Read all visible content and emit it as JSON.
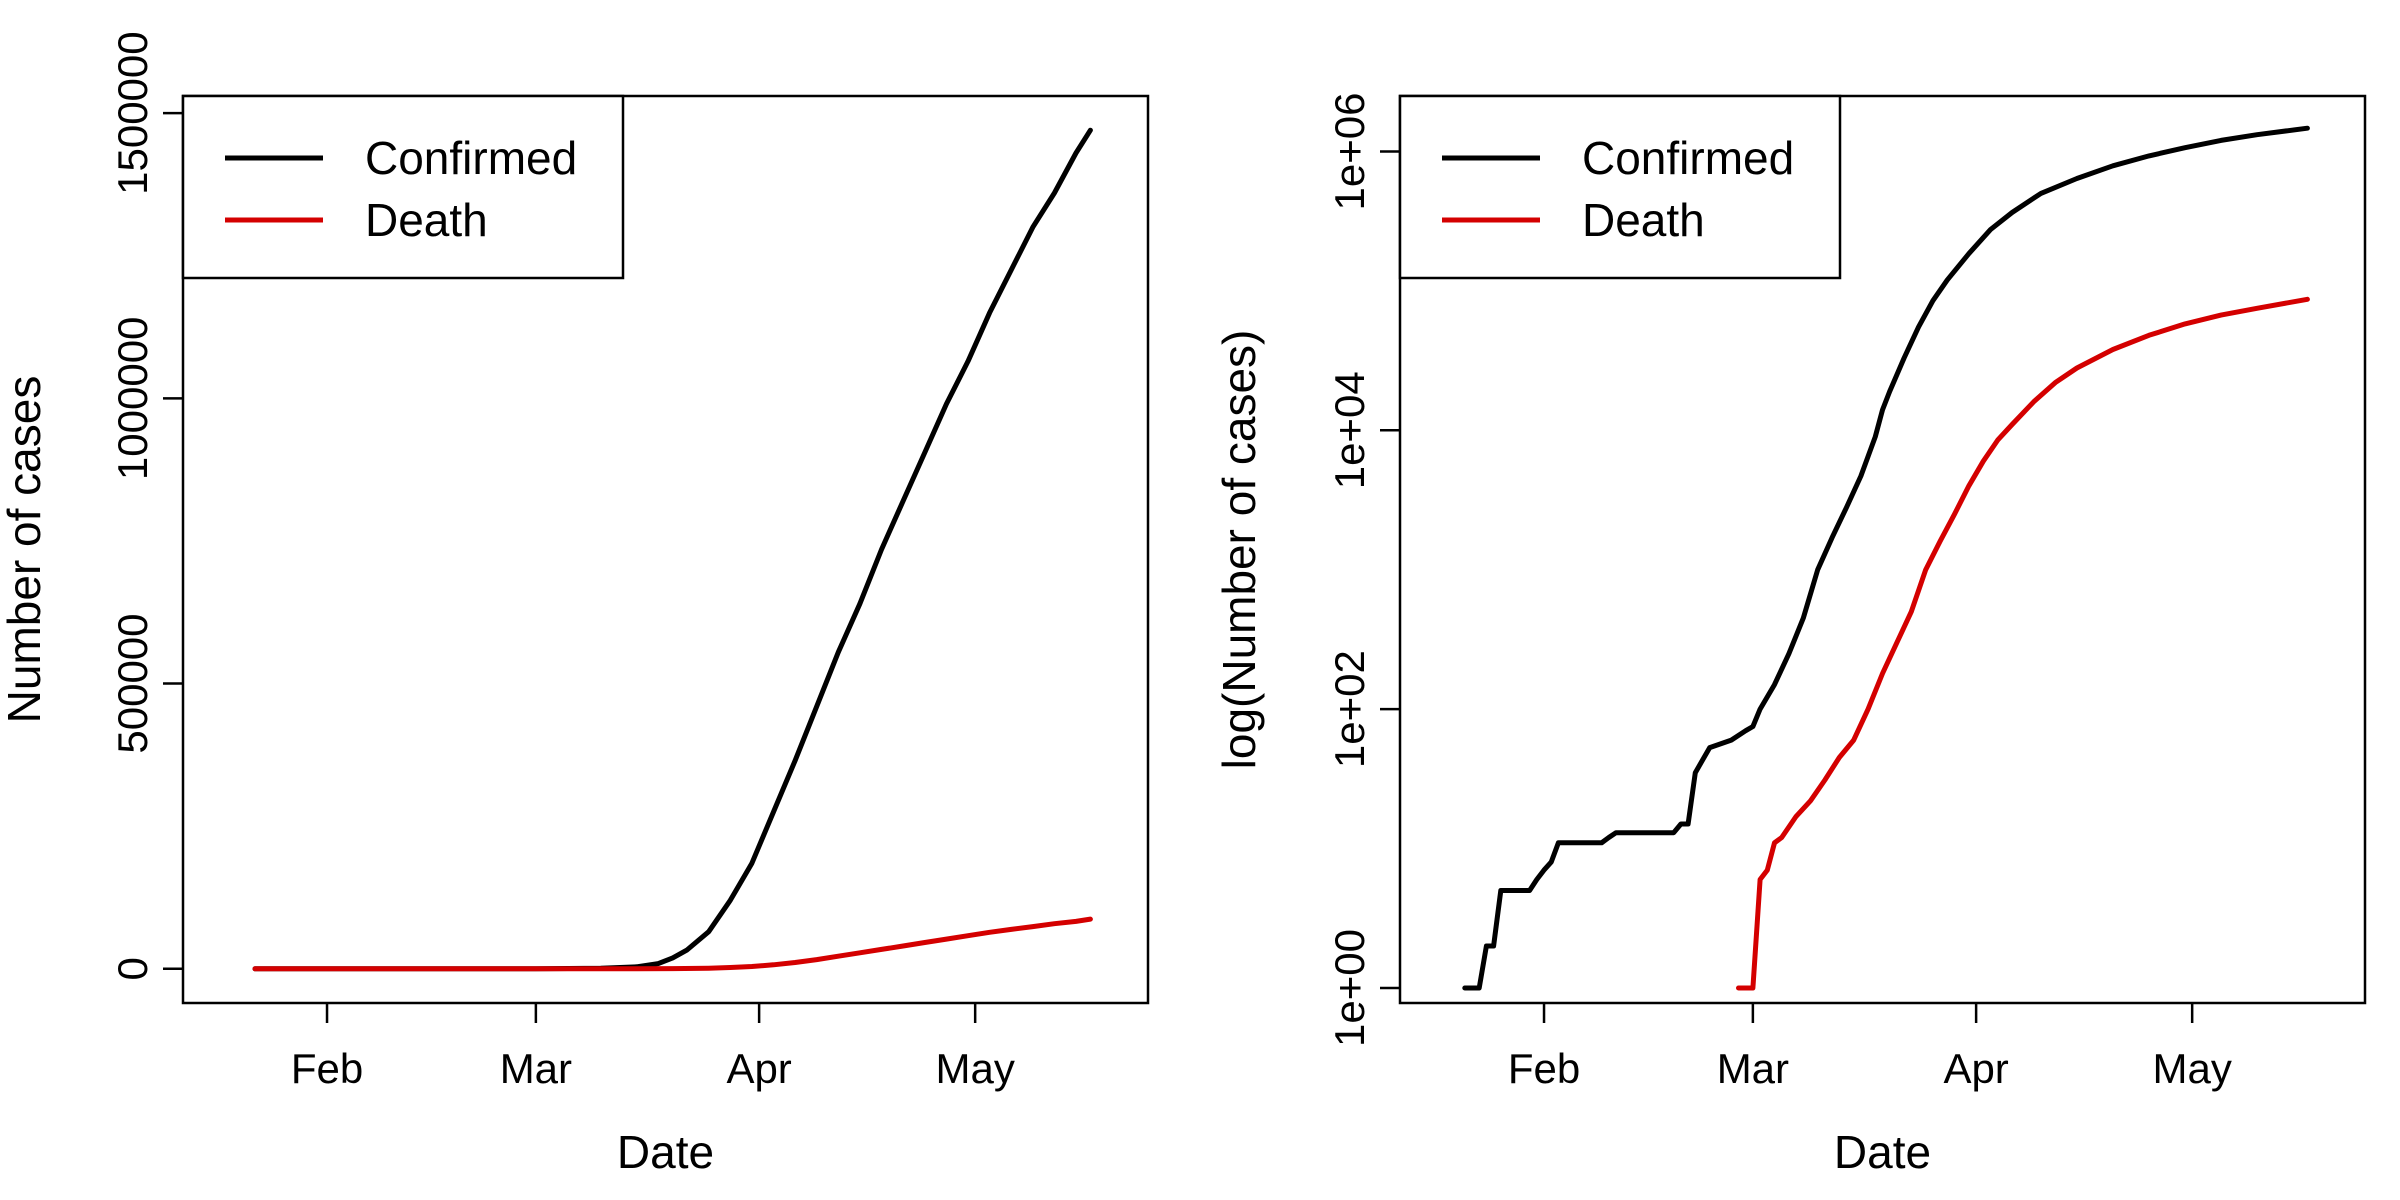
{
  "chart_data": [
    {
      "type": "line",
      "title": "",
      "xlabel": "Date",
      "ylabel": "Number of cases",
      "y_scale": "linear",
      "grid": false,
      "legend_position": "top-left",
      "x_ticks": [
        "2020-02-01",
        "2020-03-01",
        "2020-04-01",
        "2020-05-01"
      ],
      "x_tick_labels": [
        "Feb",
        "Mar",
        "Apr",
        "May"
      ],
      "y_ticks": [
        0,
        500000,
        1000000,
        1500000
      ],
      "y_tick_labels": [
        "0",
        "500000",
        "1000000",
        "1500000"
      ],
      "xlim": [
        "2020-01-12",
        "2020-05-25"
      ],
      "ylim": [
        -60000,
        1530000
      ],
      "series": [
        {
          "name": "Confirmed",
          "color": "#000000",
          "points": [
            [
              "2020-01-22",
              1
            ],
            [
              "2020-02-01",
              8
            ],
            [
              "2020-02-15",
              15
            ],
            [
              "2020-03-01",
              75
            ],
            [
              "2020-03-10",
              1000
            ],
            [
              "2020-03-15",
              3500
            ],
            [
              "2020-03-18",
              9000
            ],
            [
              "2020-03-20",
              19000
            ],
            [
              "2020-03-22",
              33000
            ],
            [
              "2020-03-25",
              65000
            ],
            [
              "2020-03-28",
              120000
            ],
            [
              "2020-03-31",
              185000
            ],
            [
              "2020-04-03",
              275000
            ],
            [
              "2020-04-06",
              365000
            ],
            [
              "2020-04-09",
              460000
            ],
            [
              "2020-04-12",
              555000
            ],
            [
              "2020-04-15",
              640000
            ],
            [
              "2020-04-18",
              735000
            ],
            [
              "2020-04-21",
              820000
            ],
            [
              "2020-04-24",
              905000
            ],
            [
              "2020-04-27",
              990000
            ],
            [
              "2020-04-30",
              1065000
            ],
            [
              "2020-05-03",
              1150000
            ],
            [
              "2020-05-06",
              1225000
            ],
            [
              "2020-05-09",
              1300000
            ],
            [
              "2020-05-12",
              1360000
            ],
            [
              "2020-05-15",
              1430000
            ],
            [
              "2020-05-17",
              1470000
            ]
          ]
        },
        {
          "name": "Death",
          "color": "#d40000",
          "points": [
            [
              "2020-01-22",
              0
            ],
            [
              "2020-03-01",
              1
            ],
            [
              "2020-03-15",
              60
            ],
            [
              "2020-03-20",
              250
            ],
            [
              "2020-03-25",
              1000
            ],
            [
              "2020-03-28",
              2200
            ],
            [
              "2020-03-31",
              4000
            ],
            [
              "2020-04-03",
              7000
            ],
            [
              "2020-04-06",
              11000
            ],
            [
              "2020-04-09",
              16000
            ],
            [
              "2020-04-12",
              22000
            ],
            [
              "2020-04-15",
              28000
            ],
            [
              "2020-04-18",
              34000
            ],
            [
              "2020-04-21",
              40000
            ],
            [
              "2020-04-24",
              46000
            ],
            [
              "2020-04-27",
              52000
            ],
            [
              "2020-04-30",
              58000
            ],
            [
              "2020-05-03",
              64000
            ],
            [
              "2020-05-06",
              69000
            ],
            [
              "2020-05-09",
              74000
            ],
            [
              "2020-05-12",
              79000
            ],
            [
              "2020-05-15",
              83000
            ],
            [
              "2020-05-17",
              87000
            ]
          ]
        }
      ]
    },
    {
      "type": "line",
      "title": "",
      "xlabel": "Date",
      "ylabel": "log(Number of cases)",
      "y_scale": "log",
      "grid": false,
      "legend_position": "top-left",
      "x_ticks": [
        "2020-02-01",
        "2020-03-01",
        "2020-04-01",
        "2020-05-01"
      ],
      "x_tick_labels": [
        "Feb",
        "Mar",
        "Apr",
        "May"
      ],
      "y_ticks": [
        1,
        100,
        10000,
        1000000
      ],
      "y_tick_labels": [
        "1e+00",
        "1e+02",
        "1e+04",
        "1e+06"
      ],
      "xlim": [
        "2020-01-12",
        "2020-05-25"
      ],
      "ylim": [
        0.78,
        2500000
      ],
      "series": [
        {
          "name": "Confirmed",
          "color": "#000000",
          "points": [
            [
              "2020-01-21",
              1
            ],
            [
              "2020-01-22",
              1
            ],
            [
              "2020-01-23",
              1
            ],
            [
              "2020-01-24",
              2
            ],
            [
              "2020-01-25",
              2
            ],
            [
              "2020-01-26",
              5
            ],
            [
              "2020-01-30",
              5
            ],
            [
              "2020-01-31",
              6
            ],
            [
              "2020-02-01",
              7
            ],
            [
              "2020-02-02",
              8
            ],
            [
              "2020-02-03",
              11
            ],
            [
              "2020-02-09",
              11
            ],
            [
              "2020-02-10",
              12
            ],
            [
              "2020-02-11",
              13
            ],
            [
              "2020-02-19",
              13
            ],
            [
              "2020-02-20",
              15
            ],
            [
              "2020-02-21",
              15
            ],
            [
              "2020-02-22",
              35
            ],
            [
              "2020-02-24",
              53
            ],
            [
              "2020-02-27",
              60
            ],
            [
              "2020-02-29",
              70
            ],
            [
              "2020-03-01",
              75
            ],
            [
              "2020-03-02",
              100
            ],
            [
              "2020-03-04",
              150
            ],
            [
              "2020-03-06",
              250
            ],
            [
              "2020-03-08",
              450
            ],
            [
              "2020-03-10",
              1000
            ],
            [
              "2020-03-12",
              1700
            ],
            [
              "2020-03-14",
              2800
            ],
            [
              "2020-03-16",
              4700
            ],
            [
              "2020-03-18",
              9000
            ],
            [
              "2020-03-19",
              14000
            ],
            [
              "2020-03-20",
              19000
            ],
            [
              "2020-03-22",
              33000
            ],
            [
              "2020-03-24",
              55000
            ],
            [
              "2020-03-26",
              85000
            ],
            [
              "2020-03-28",
              120000
            ],
            [
              "2020-03-31",
              185000
            ],
            [
              "2020-04-03",
              275000
            ],
            [
              "2020-04-06",
              365000
            ],
            [
              "2020-04-10",
              500000
            ],
            [
              "2020-04-15",
              640000
            ],
            [
              "2020-04-20",
              790000
            ],
            [
              "2020-04-25",
              930000
            ],
            [
              "2020-04-30",
              1065000
            ],
            [
              "2020-05-05",
              1200000
            ],
            [
              "2020-05-10",
              1320000
            ],
            [
              "2020-05-17",
              1470000
            ]
          ]
        },
        {
          "name": "Death",
          "color": "#d40000",
          "points": [
            [
              "2020-02-28",
              1
            ],
            [
              "2020-02-29",
              1
            ],
            [
              "2020-03-01",
              1
            ],
            [
              "2020-03-02",
              6
            ],
            [
              "2020-03-03",
              7
            ],
            [
              "2020-03-04",
              11
            ],
            [
              "2020-03-05",
              12
            ],
            [
              "2020-03-07",
              17
            ],
            [
              "2020-03-09",
              22
            ],
            [
              "2020-03-11",
              31
            ],
            [
              "2020-03-13",
              45
            ],
            [
              "2020-03-15",
              60
            ],
            [
              "2020-03-17",
              100
            ],
            [
              "2020-03-19",
              180
            ],
            [
              "2020-03-21",
              300
            ],
            [
              "2020-03-23",
              500
            ],
            [
              "2020-03-25",
              1000
            ],
            [
              "2020-03-27",
              1600
            ],
            [
              "2020-03-29",
              2500
            ],
            [
              "2020-03-31",
              4000
            ],
            [
              "2020-04-02",
              6000
            ],
            [
              "2020-04-04",
              8500
            ],
            [
              "2020-04-06",
              11000
            ],
            [
              "2020-04-09",
              16000
            ],
            [
              "2020-04-12",
              22000
            ],
            [
              "2020-04-15",
              28000
            ],
            [
              "2020-04-20",
              38000
            ],
            [
              "2020-04-25",
              48000
            ],
            [
              "2020-04-30",
              58000
            ],
            [
              "2020-05-05",
              67000
            ],
            [
              "2020-05-10",
              75000
            ],
            [
              "2020-05-17",
              87000
            ]
          ]
        }
      ]
    }
  ]
}
